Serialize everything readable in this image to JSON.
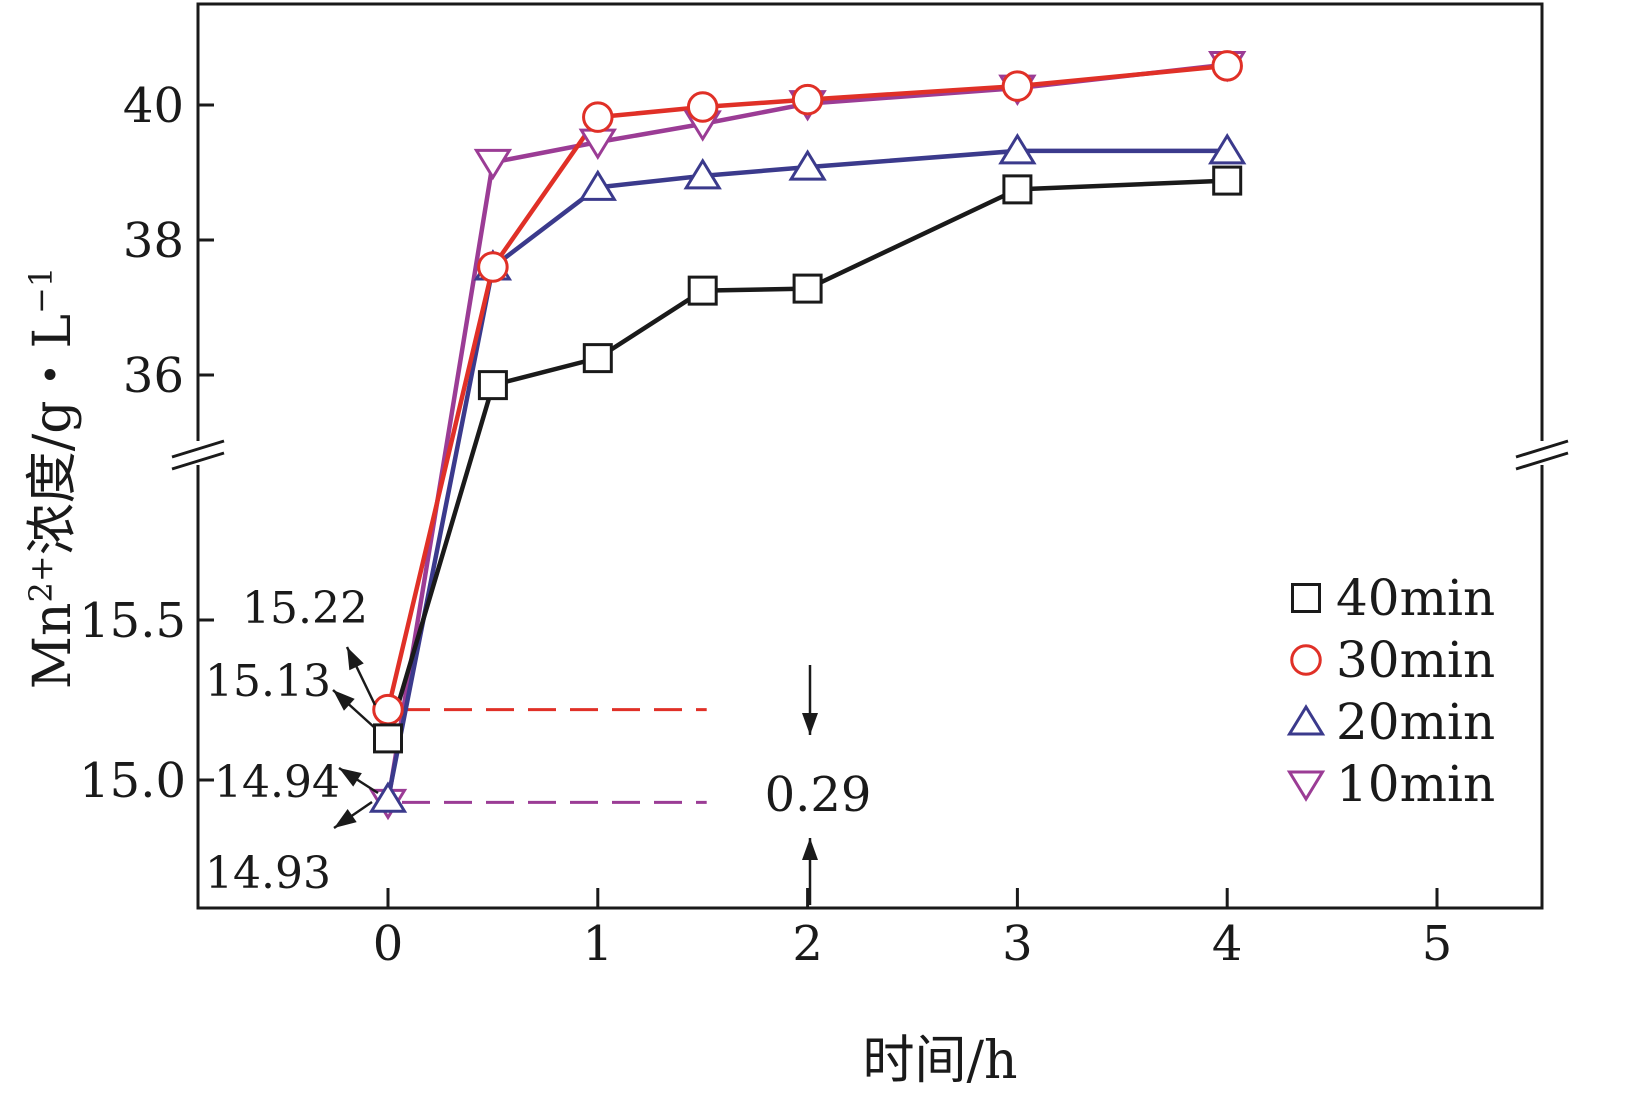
{
  "chart_data": {
    "type": "line",
    "xlabel": "时间/h",
    "ylabel_main": "Mn",
    "ylabel_sup": "2+",
    "ylabel_rest": "浓度/g・L",
    "ylabel_unit_sup": "−1",
    "x_ticks": [
      "0",
      "1",
      "2",
      "3",
      "4",
      "5"
    ],
    "xlim": [
      -0.9,
      5.5
    ],
    "y_axis_break": true,
    "ylim_upper": [
      34.9,
      41.5
    ],
    "y_ticks_upper": [
      "36",
      "38",
      "40"
    ],
    "ylim_lower": [
      14.6,
      15.9
    ],
    "y_ticks_lower": [
      "15.0",
      "15.5"
    ],
    "legend_position": "right",
    "series": [
      {
        "name": "40min",
        "marker": "square",
        "color": "#1a1a1a",
        "points": [
          [
            0,
            15.13
          ],
          [
            0.5,
            35.85
          ],
          [
            1,
            36.25
          ],
          [
            1.5,
            37.25
          ],
          [
            2,
            37.28
          ],
          [
            3,
            38.75
          ],
          [
            4,
            38.88
          ]
        ]
      },
      {
        "name": "30min",
        "marker": "circle",
        "color": "#e03027",
        "points": [
          [
            0,
            15.22
          ],
          [
            0.5,
            37.6
          ],
          [
            1,
            39.82
          ],
          [
            1.5,
            39.97
          ],
          [
            2,
            40.08
          ],
          [
            3,
            40.28
          ],
          [
            4,
            40.58
          ]
        ]
      },
      {
        "name": "20min",
        "marker": "triangle-up",
        "color": "#3b3a8c",
        "points": [
          [
            0,
            14.94
          ],
          [
            0.5,
            37.6
          ],
          [
            1,
            38.78
          ],
          [
            1.5,
            38.95
          ],
          [
            2,
            39.08
          ],
          [
            3,
            39.32
          ],
          [
            4,
            39.32
          ]
        ]
      },
      {
        "name": "10min",
        "marker": "triangle-down",
        "color": "#9b3c95",
        "points": [
          [
            0,
            14.93
          ],
          [
            0.5,
            39.15
          ],
          [
            1,
            39.45
          ],
          [
            1.5,
            39.72
          ],
          [
            2,
            40.02
          ],
          [
            3,
            40.25
          ],
          [
            4,
            40.6
          ]
        ]
      }
    ],
    "annotations": {
      "point_labels": [
        "15.22",
        "15.13",
        "14.94",
        "14.93"
      ],
      "difference_label": "0.29",
      "reference_lines": [
        {
          "y": 15.22,
          "color": "#e03027"
        },
        {
          "y": 14.93,
          "color": "#9b3c95"
        }
      ]
    }
  }
}
